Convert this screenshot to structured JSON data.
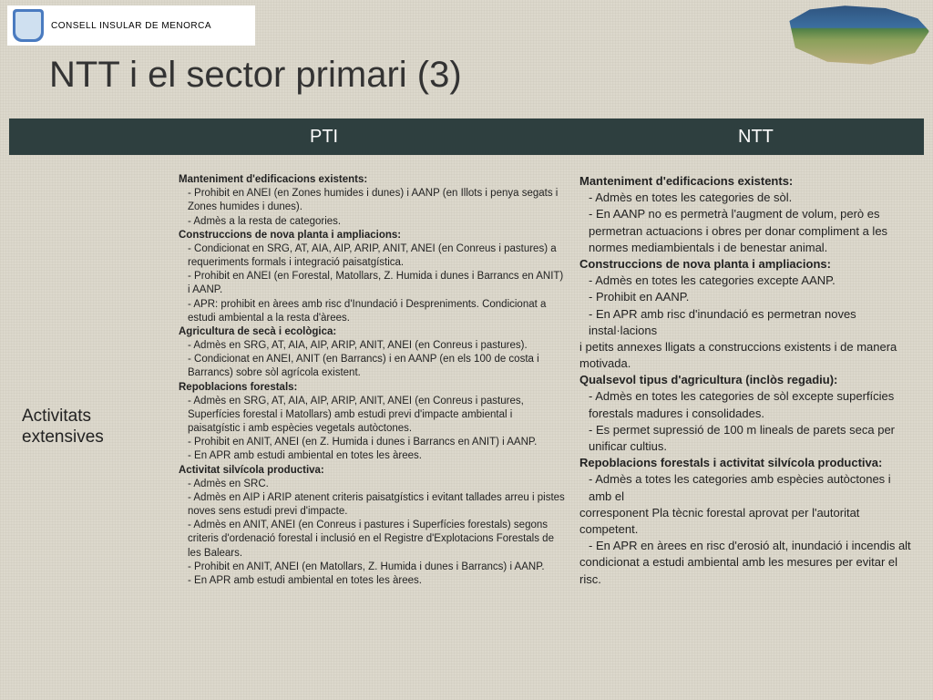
{
  "logo_text": "CONSELL INSULAR DE MENORCA",
  "title": "NTT i el sector primari (3)",
  "headers": {
    "col1": "PTI",
    "col2": "NTT"
  },
  "row_label": "Activitats\nextensives",
  "pti": {
    "s1_title": "Manteniment d'edificacions existents:",
    "s1_a": "- Prohibit en ANEI (en Zones humides i dunes) i AANP (en Illots i penya segats i Zones humides i dunes).",
    "s1_b": "- Admès a la resta de categories.",
    "s2_title": "Construccions de nova planta i ampliacions:",
    "s2_a": "- Condicionat en SRG, AT, AIA, AIP, ARIP, ANIT, ANEI (en Conreus i pastures) a requeriments formals i integració paisatgística.",
    "s2_b": "- Prohibit en ANEI (en Forestal, Matollars, Z. Humida i dunes i Barrancs en ANIT) i AANP.",
    "s2_c": "- APR: prohibit en àrees amb risc d'Inundació i Despreniments. Condicionat a estudi ambiental a la resta d'àrees.",
    "s3_title": "Agricultura de secà i ecològica:",
    "s3_a": "- Admès en SRG, AT, AIA, AIP, ARIP, ANIT, ANEI (en Conreus i pastures).",
    "s3_b": "- Condicionat en ANEI, ANIT (en Barrancs) i en AANP (en els 100 de costa i Barrancs) sobre sòl agrícola existent.",
    "s4_title": "Repoblacions forestals:",
    "s4_a": "- Admès en SRG, AT, AIA, AIP, ARIP, ANIT, ANEI (en Conreus i pastures, Superfícies forestal i Matollars) amb estudi previ d'impacte ambiental i paisatgístic i amb espècies vegetals autòctones.",
    "s4_b": "- Prohibit en ANIT, ANEI (en Z. Humida i dunes i Barrancs en ANIT) i AANP.",
    "s4_c": "- En APR amb estudi ambiental en totes les àrees.",
    "s5_title": "Activitat silvícola productiva:",
    "s5_a": "- Admès en SRC.",
    "s5_b": "- Admès en AIP i ARIP atenent criteris paisatgístics i evitant tallades arreu i pistes noves sens estudi previ d'impacte.",
    "s5_c": "- Admès en ANIT, ANEI (en Conreus i pastures i Superfícies forestals) segons criteris d'ordenació forestal i inclusió en el Registre d'Explotacions Forestals de les Balears.",
    "s5_d": "- Prohibit en ANIT, ANEI (en Matollars, Z. Humida i dunes i Barrancs) i AANP.",
    "s5_e": "- En APR amb estudi ambiental en totes les àrees."
  },
  "ntt": {
    "s1_title": "Manteniment d'edificacions existents:",
    "s1_a": "- Admès en totes les categories de sòl.",
    "s1_b": "- En AANP no es permetrà l'augment de volum, però es permetran actuacions i obres per donar compliment a les normes mediambientals i de benestar animal.",
    "s2_title": "Construccions de nova planta i ampliacions:",
    "s2_a": "- Admès en totes les categories excepte AANP.",
    "s2_b": "- Prohibit en AANP.",
    "s2_c": "- En APR amb risc d'inundació es permetran noves instal·lacions",
    "s2_d": "i petits annexes lligats a construccions existents i de manera motivada.",
    "s3_title": "Qualsevol tipus d'agricultura (inclòs regadiu):",
    "s3_a": "- Admès en totes les categories de sòl excepte superfícies forestals madures i consolidades.",
    "s3_b": "- Es permet supressió de 100 m lineals de parets seca per unificar cultius.",
    "s4_title": "Repoblacions forestals i activitat silvícola productiva:",
    "s4_a": "- Admès a totes les categories amb espècies autòctones i amb el",
    "s4_b": "corresponent Pla tècnic forestal aprovat per l'autoritat competent.",
    "s4_c": "- En APR en àrees en risc d'erosió alt, inundació i incendis alt",
    "s4_d": "condicionat a estudi ambiental amb les mesures per evitar el risc."
  }
}
